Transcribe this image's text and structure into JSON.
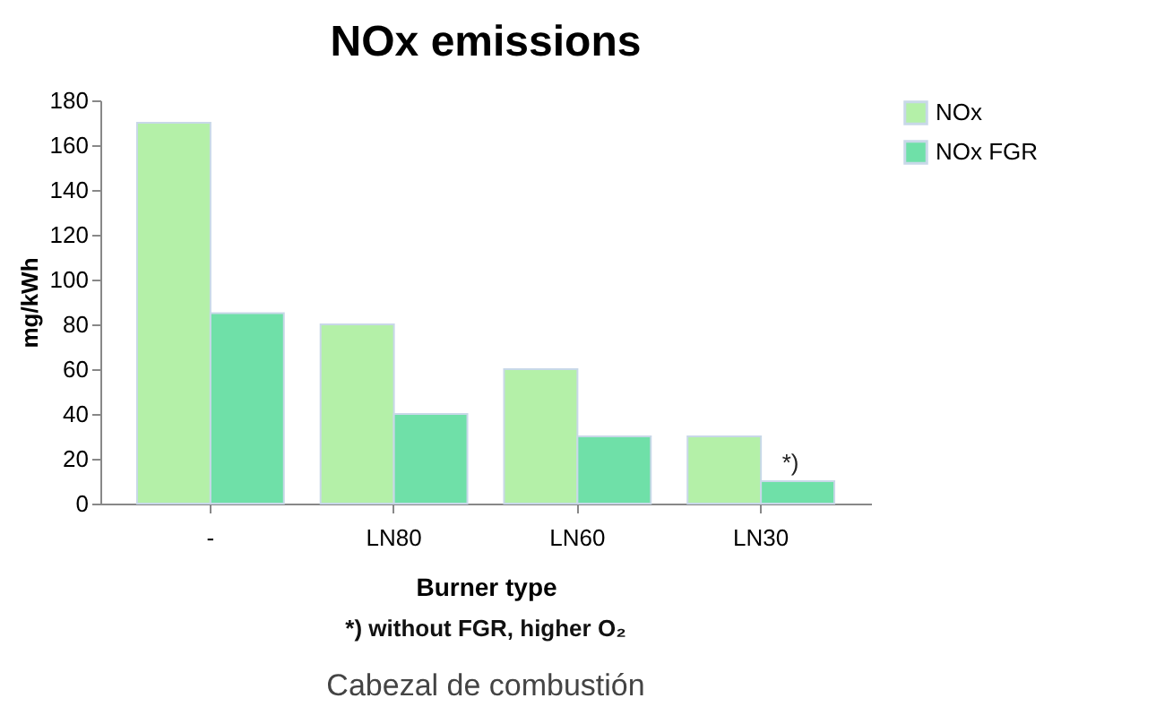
{
  "chart_data": {
    "type": "bar",
    "title": "NOx emissions",
    "xlabel": "Burner type",
    "ylabel": "mg/kWh",
    "categories": [
      "-",
      "LN80",
      "LN60",
      "LN30"
    ],
    "series": [
      {
        "name": "NOx",
        "color": "#b4f0a8",
        "values": [
          170,
          80,
          60,
          30
        ]
      },
      {
        "name": "NOx FGR",
        "color": "#6fe0a8",
        "values": [
          85,
          40,
          30,
          10
        ]
      }
    ],
    "ylim": [
      0,
      180
    ],
    "yticks": [
      0,
      20,
      40,
      60,
      80,
      100,
      120,
      140,
      160,
      180
    ],
    "grid": false,
    "legend": "right",
    "annotations": [
      {
        "text": "*)",
        "x": "LN30",
        "y": 10
      },
      "*) without FGR, higher O₂",
      "Cabezal de combustión"
    ]
  }
}
